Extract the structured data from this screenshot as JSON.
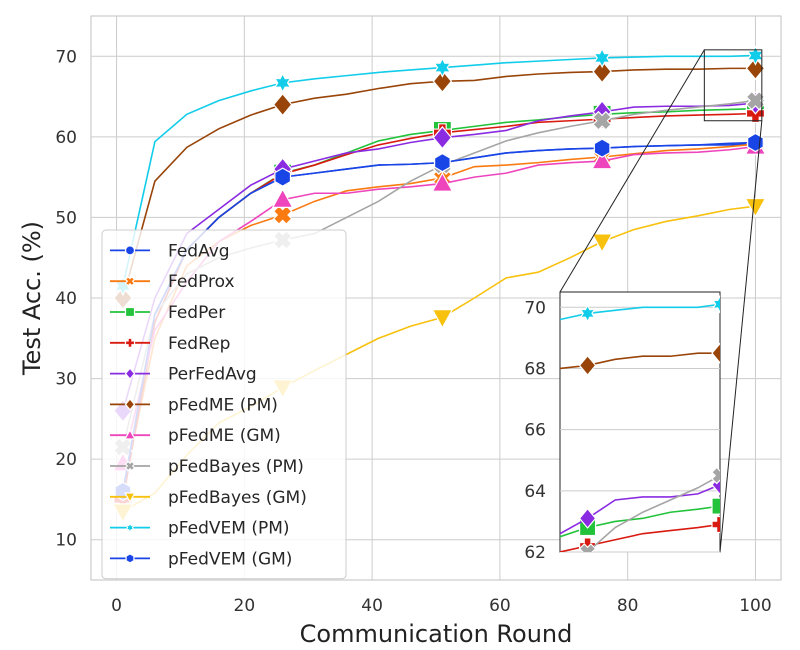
{
  "chart_data": {
    "type": "line",
    "xlabel": "Communication Round",
    "ylabel": "Test Acc. (%)",
    "xlim": [
      -4,
      104
    ],
    "ylim": [
      5,
      75
    ],
    "xticks": [
      0,
      20,
      40,
      60,
      80,
      100
    ],
    "yticks": [
      10,
      20,
      30,
      40,
      50,
      60,
      70
    ],
    "grid": true,
    "legend_position": "lower-left",
    "x": [
      1,
      6,
      11,
      16,
      21,
      26,
      31,
      36,
      41,
      46,
      51,
      56,
      61,
      66,
      71,
      76,
      81,
      86,
      91,
      96,
      100
    ],
    "marker_x": [
      1,
      26,
      51,
      76,
      100
    ],
    "series": [
      {
        "name": "FedAvg",
        "color": "#1a45e6",
        "marker": "circle",
        "values": [
          16,
          38,
          46,
          50,
          53,
          55,
          55.5,
          56,
          56.5,
          56.6,
          56.8,
          57.4,
          58,
          58.3,
          58.5,
          58.6,
          58.8,
          58.9,
          59,
          59,
          59.2
        ]
      },
      {
        "name": "FedProx",
        "color": "#f97a10",
        "marker": "x",
        "values": [
          16,
          35,
          44,
          47,
          49,
          50.3,
          52,
          53.3,
          53.8,
          54.2,
          54.9,
          56.3,
          56.5,
          56.8,
          57.2,
          57.5,
          57.9,
          58.3,
          58.5,
          58.8,
          59.1
        ]
      },
      {
        "name": "FedPer",
        "color": "#22c33a",
        "marker": "square",
        "values": [
          15,
          37,
          46,
          50,
          53,
          55.5,
          56.5,
          58,
          59.5,
          60.3,
          60.8,
          61.3,
          61.8,
          62.1,
          62.5,
          62.8,
          63,
          63.1,
          63.3,
          63.4,
          63.5
        ]
      },
      {
        "name": "FedRep",
        "color": "#d91a10",
        "marker": "plus",
        "values": [
          15,
          37,
          46,
          50,
          53,
          55.4,
          56.5,
          57.8,
          59,
          59.8,
          60.5,
          60.9,
          61.3,
          61.8,
          62,
          62.2,
          62.4,
          62.6,
          62.7,
          62.8,
          62.9
        ]
      },
      {
        "name": "PerFedAvg",
        "color": "#8a2be2",
        "marker": "diamond",
        "values": [
          26,
          40,
          48,
          51,
          54,
          56,
          57,
          58,
          58.5,
          59.3,
          59.9,
          60.3,
          60.8,
          62,
          62.6,
          63.1,
          63.7,
          63.8,
          63.8,
          63.9,
          64.2
        ]
      },
      {
        "name": "pFedME (PM)",
        "color": "#994408",
        "marker": "diamond",
        "values": [
          40,
          54.5,
          58.7,
          61,
          62.7,
          64,
          64.8,
          65.3,
          66,
          66.6,
          66.9,
          67,
          67.5,
          67.8,
          68,
          68.1,
          68.3,
          68.4,
          68.4,
          68.5,
          68.5
        ]
      },
      {
        "name": "pFedME (GM)",
        "color": "#ee45bd",
        "marker": "triangle-up",
        "values": [
          19.5,
          36,
          42,
          47,
          49.5,
          52.2,
          53,
          53,
          53.5,
          53.8,
          54.2,
          55,
          55.5,
          56.5,
          56.8,
          57,
          57.8,
          58,
          58.1,
          58.4,
          58.8
        ]
      },
      {
        "name": "pFedBayes (PM)",
        "color": "#a5a5a5",
        "marker": "x",
        "values": [
          21.5,
          38,
          43,
          45,
          46.2,
          47.2,
          48,
          50,
          52,
          54.5,
          56.5,
          58,
          59.5,
          60.5,
          61.3,
          62,
          62.8,
          63.3,
          63.7,
          64.1,
          64.5
        ]
      },
      {
        "name": "pFedBayes (GM)",
        "color": "#f8c10e",
        "marker": "triangle-down",
        "values": [
          13.5,
          15.8,
          20.5,
          24.5,
          26.5,
          28.9,
          31,
          33,
          35,
          36.5,
          37.6,
          40,
          42.5,
          43.2,
          45,
          47,
          48.5,
          49.5,
          50.2,
          51,
          51.4
        ]
      },
      {
        "name": "pFedVEM (PM)",
        "color": "#12cdea",
        "marker": "star",
        "values": [
          41.5,
          59.4,
          62.8,
          64.5,
          65.7,
          66.7,
          67.2,
          67.6,
          68,
          68.3,
          68.6,
          68.9,
          69.2,
          69.4,
          69.6,
          69.8,
          69.9,
          70,
          70,
          70,
          70.1
        ]
      },
      {
        "name": "pFedVEM (GM)",
        "color": "#1a45e6",
        "marker": "hexagon",
        "values": [
          16,
          38,
          46,
          50,
          53,
          55,
          55.5,
          56,
          56.5,
          56.6,
          56.8,
          57.4,
          58,
          58.3,
          58.5,
          58.6,
          58.8,
          58.9,
          59,
          59.2,
          59.3
        ]
      }
    ],
    "inset": {
      "xlim": [
        71,
        100
      ],
      "ylim": [
        62,
        70.5
      ],
      "yticks": [
        62,
        64,
        66,
        68,
        70
      ],
      "source_xlim": [
        92,
        101
      ],
      "source_ylim": [
        62,
        70.8
      ]
    }
  }
}
